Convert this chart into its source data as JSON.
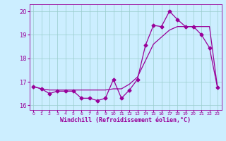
{
  "xlabel": "Windchill (Refroidissement éolien,°C)",
  "background_color": "#cceeff",
  "line_color": "#990099",
  "grid_color": "#99cccc",
  "xlim": [
    -0.5,
    23.5
  ],
  "ylim": [
    15.8,
    20.3
  ],
  "yticks": [
    16,
    17,
    18,
    19,
    20
  ],
  "xticks": [
    0,
    1,
    2,
    3,
    4,
    5,
    6,
    7,
    8,
    9,
    10,
    11,
    12,
    13,
    14,
    15,
    16,
    17,
    18,
    19,
    20,
    21,
    22,
    23
  ],
  "hours": [
    0,
    1,
    2,
    3,
    4,
    5,
    6,
    7,
    8,
    9,
    10,
    11,
    12,
    13,
    14,
    15,
    16,
    17,
    18,
    19,
    20,
    21,
    22,
    23
  ],
  "windchill": [
    16.8,
    16.7,
    16.5,
    16.6,
    16.6,
    16.6,
    16.3,
    16.3,
    16.2,
    16.3,
    17.1,
    16.3,
    16.65,
    17.1,
    18.55,
    19.4,
    19.35,
    20.0,
    19.65,
    19.35,
    19.35,
    19.0,
    18.45,
    16.75
  ],
  "trend": [
    16.8,
    16.7,
    16.65,
    16.65,
    16.65,
    16.65,
    16.65,
    16.65,
    16.65,
    16.65,
    16.7,
    16.7,
    16.9,
    17.2,
    17.9,
    18.6,
    18.9,
    19.2,
    19.35,
    19.35,
    19.35,
    19.35,
    19.35,
    16.75
  ],
  "figwidth": 3.2,
  "figheight": 2.0,
  "dpi": 100
}
